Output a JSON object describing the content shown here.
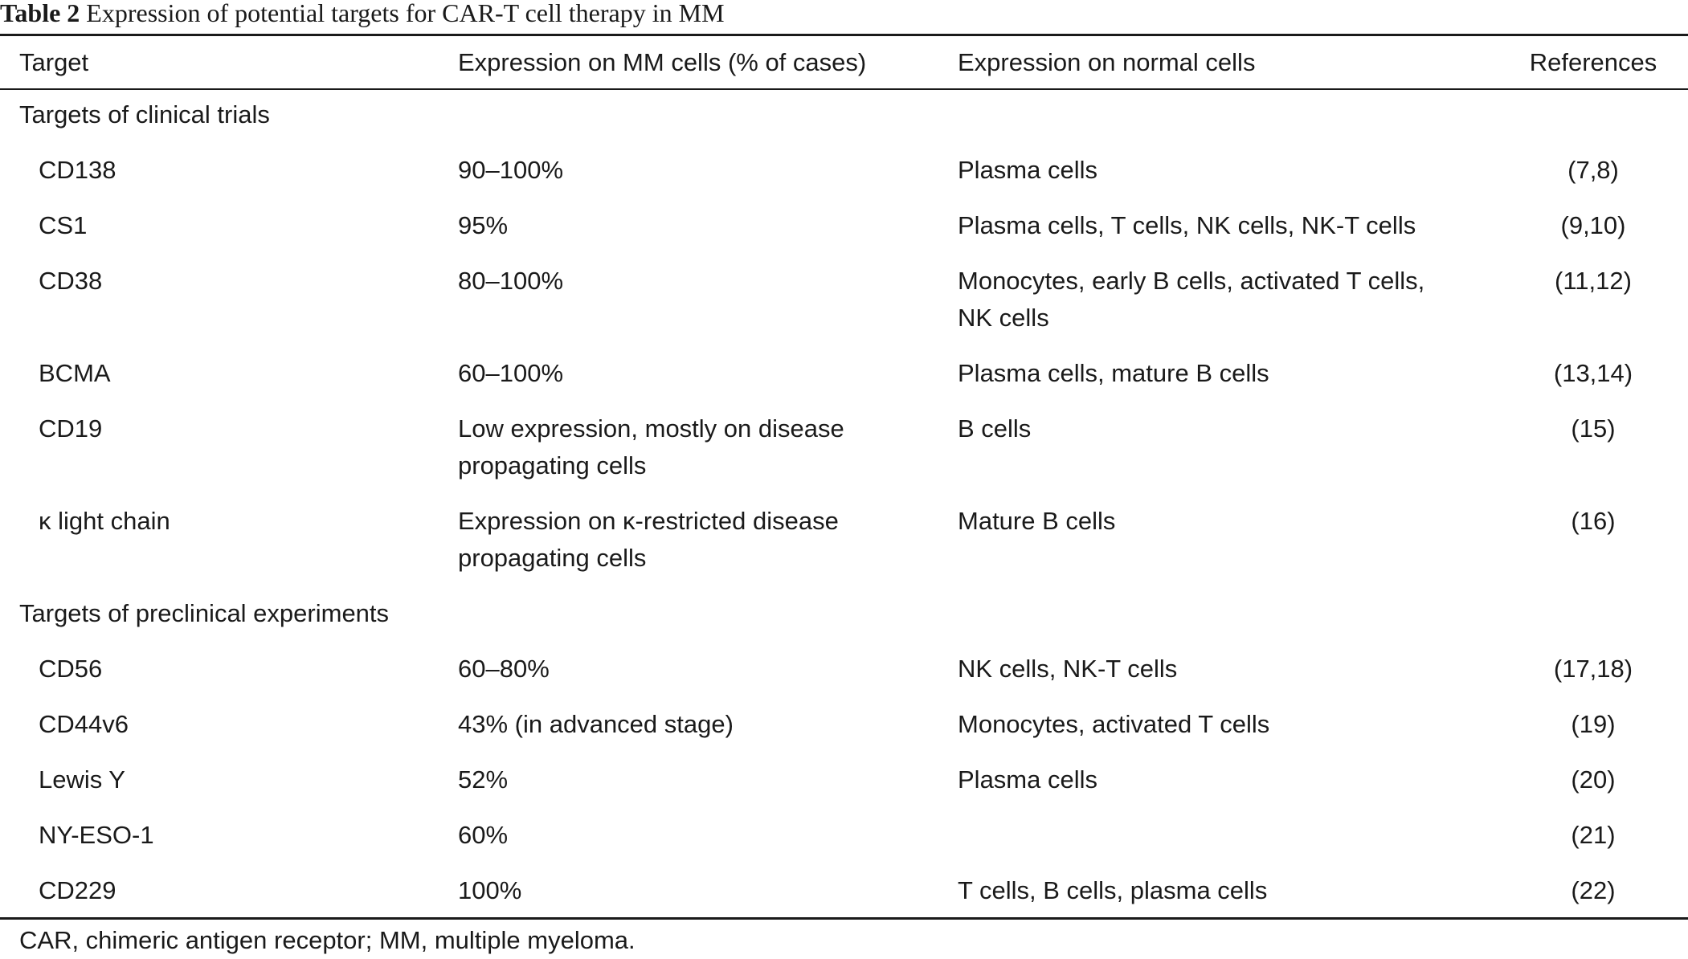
{
  "table": {
    "caption_label": "Table 2",
    "caption_text": "Expression of potential targets for CAR-T cell therapy in MM",
    "columns": [
      "Target",
      "Expression on MM cells (% of cases)",
      "Expression on normal cells",
      "References"
    ],
    "sections": [
      {
        "title": "Targets of clinical trials",
        "rows": [
          {
            "target": "CD138",
            "mm": [
              "90–100%"
            ],
            "normal": [
              "Plasma cells"
            ],
            "refs": "(7,8)"
          },
          {
            "target": "CS1",
            "mm": [
              "95%"
            ],
            "normal": [
              "Plasma cells, T cells, NK cells, NK-T cells"
            ],
            "refs": "(9,10)"
          },
          {
            "target": "CD38",
            "mm": [
              "80–100%"
            ],
            "normal": [
              "Monocytes, early B cells, activated T cells,",
              "NK cells"
            ],
            "refs": "(11,12)"
          },
          {
            "target": "BCMA",
            "mm": [
              "60–100%"
            ],
            "normal": [
              "Plasma cells, mature B cells"
            ],
            "refs": "(13,14)"
          },
          {
            "target": "CD19",
            "mm": [
              "Low expression, mostly on disease",
              "propagating cells"
            ],
            "normal": [
              "B cells"
            ],
            "refs": "(15)"
          },
          {
            "target": "κ light chain",
            "mm": [
              "Expression on κ-restricted disease",
              "propagating cells"
            ],
            "normal": [
              "Mature B cells"
            ],
            "refs": "(16)"
          }
        ]
      },
      {
        "title": "Targets of preclinical experiments",
        "rows": [
          {
            "target": "CD56",
            "mm": [
              "60–80%"
            ],
            "normal": [
              "NK cells, NK-T cells"
            ],
            "refs": "(17,18)"
          },
          {
            "target": "CD44v6",
            "mm": [
              "43% (in advanced stage)"
            ],
            "normal": [
              "Monocytes, activated T cells"
            ],
            "refs": "(19)"
          },
          {
            "target": "Lewis Y",
            "mm": [
              "52%"
            ],
            "normal": [
              "Plasma cells"
            ],
            "refs": "(20)"
          },
          {
            "target": "NY-ESO-1",
            "mm": [
              "60%"
            ],
            "normal": [
              ""
            ],
            "refs": "(21)"
          },
          {
            "target": "CD229",
            "mm": [
              "100%"
            ],
            "normal": [
              "T cells, B cells, plasma cells"
            ],
            "refs": "(22)"
          }
        ]
      }
    ],
    "footnote": "CAR, chimeric antigen receptor; MM, multiple myeloma."
  }
}
